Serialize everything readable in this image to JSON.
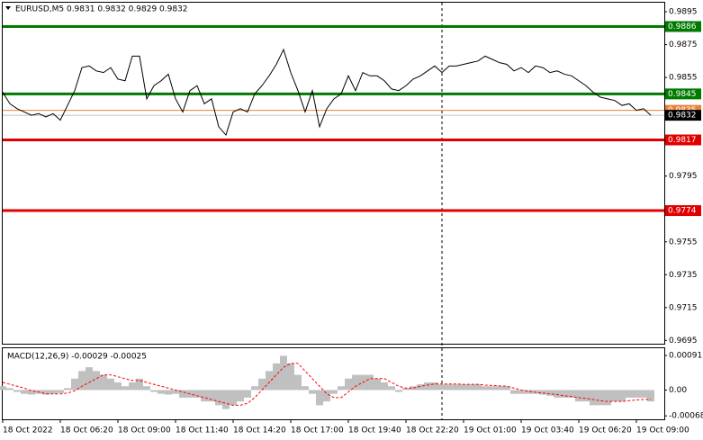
{
  "chart_data": [
    {
      "type": "line",
      "title": "EURUSD,M5  0.9831 0.9832 0.9829 0.9832",
      "series": [
        {
          "color": "#000000",
          "values": [
            0.9846,
            0.9839,
            0.9836,
            0.9834,
            0.9832,
            0.9833,
            0.9831,
            0.9833,
            0.9829,
            0.9838,
            0.9847,
            0.9861,
            0.9862,
            0.9859,
            0.9858,
            0.9861,
            0.9854,
            0.9853,
            0.9868,
            0.9868,
            0.9842,
            0.985,
            0.9853,
            0.9857,
            0.9842,
            0.9834,
            0.9847,
            0.985,
            0.9839,
            0.9842,
            0.9825,
            0.982,
            0.9834,
            0.9836,
            0.9834,
            0.9845,
            0.985,
            0.9856,
            0.9863,
            0.9872,
            0.9858,
            0.9847,
            0.9834,
            0.9847,
            0.9825,
            0.9836,
            0.9842,
            0.9845,
            0.9856,
            0.9847,
            0.9858,
            0.9856,
            0.9856,
            0.9853,
            0.9848,
            0.9847,
            0.985,
            0.9854,
            0.9856,
            0.9859,
            0.9862,
            0.9858,
            0.9862,
            0.9862,
            0.9863,
            0.9864,
            0.9865,
            0.9868,
            0.9866,
            0.9864,
            0.9863,
            0.9859,
            0.9861,
            0.9858,
            0.9862,
            0.9861,
            0.9858,
            0.9859,
            0.9857,
            0.9856,
            0.9853,
            0.985,
            0.9846,
            0.9843,
            0.9842,
            0.9841,
            0.9838,
            0.9839,
            0.9835,
            0.9836,
            0.9832
          ]
        }
      ],
      "ylim": [
        0.9693,
        0.99005
      ],
      "yticks": [
        0.9895,
        0.9875,
        0.9855,
        0.9795,
        0.9755,
        0.9735,
        0.9715,
        0.9695
      ],
      "levels": [
        {
          "value": 0.9835,
          "color": "#e8833a",
          "thin": true
        },
        {
          "value": 0.9886,
          "color": "#007a00"
        },
        {
          "value": 0.9845,
          "color": "#007a00"
        },
        {
          "value": 0.9817,
          "color": "#e00000"
        },
        {
          "value": 0.9774,
          "color": "#e00000"
        },
        {
          "value": 0.9832,
          "color": "#000000",
          "thin": true
        }
      ],
      "xticks": [
        {
          "value": 0,
          "label": "18 Oct 2022"
        },
        {
          "value": 8,
          "label": "18 Oct 06:20"
        },
        {
          "value": 16,
          "label": "18 Oct 09:00"
        },
        {
          "value": 24,
          "label": "18 Oct 11:40"
        },
        {
          "value": 32,
          "label": "18 Oct 14:20"
        },
        {
          "value": 40,
          "label": "18 Oct 17:00"
        },
        {
          "value": 48,
          "label": "18 Oct 19:40"
        },
        {
          "value": 56,
          "label": "18 Oct 22:20"
        },
        {
          "value": 64,
          "label": "19 Oct 01:00"
        },
        {
          "value": 72,
          "label": "19 Oct 03:40"
        },
        {
          "value": 80,
          "label": "19 Oct 06:20"
        },
        {
          "value": 88,
          "label": "19 Oct 09:00"
        }
      ]
    },
    {
      "type": "macd",
      "title": "MACD(12,26,9) -0.00029 -0.00025",
      "series": [
        {
          "style": "histogram",
          "color": "#c0c0c0",
          "values": [
            0.0001,
            5e-05,
            -5e-05,
            -0.0001,
            -0.00012,
            -0.0001,
            -0.00012,
            -0.0001,
            -8e-05,
            5e-05,
            0.0003,
            0.0005,
            0.0006,
            0.0005,
            0.0004,
            0.0003,
            0.0002,
            0.0001,
            0.0002,
            0.0003,
            0.0001,
            -5e-05,
            -0.0001,
            -0.00012,
            -0.0001,
            -0.0002,
            -0.0002,
            -0.0002,
            -0.0003,
            -0.0003,
            -0.0004,
            -0.0005,
            -0.0004,
            -0.0003,
            -0.0002,
            0.0001,
            0.0003,
            0.0005,
            0.0007,
            0.0009,
            0.0007,
            0.0004,
            0.0001,
            -0.0001,
            -0.0004,
            -0.0003,
            -0.0001,
            0.0001,
            0.0003,
            0.0004,
            0.0004,
            0.0004,
            0.0003,
            0.0002,
            0.0001,
            -5e-05,
            5e-05,
            0.0001,
            0.00015,
            0.0002,
            0.0002,
            0.00015,
            0.00015,
            0.00015,
            0.00015,
            0.00015,
            0.00015,
            0.0001,
            0.0001,
            0.0001,
            0.0001,
            -0.0001,
            -0.0001,
            -0.0001,
            -0.0001,
            -0.00012,
            -0.00015,
            -0.0002,
            -0.0002,
            -0.0002,
            -0.0003,
            -0.0003,
            -0.0004,
            -0.0004,
            -0.0004,
            -0.0003,
            -0.0003,
            -0.0002,
            -0.0002,
            -0.0002,
            -0.0003
          ]
        },
        {
          "style": "signal",
          "color": "#ff0000",
          "values": [
            0.0002,
            0.00015,
            0.0001,
            5e-05,
            -2e-05,
            -5e-05,
            -0.0001,
            -0.0001,
            -0.0001,
            -8e-05,
            -2e-05,
            0.0001,
            0.0002,
            0.0003,
            0.0004,
            0.0004,
            0.00035,
            0.0003,
            0.00025,
            0.00025,
            0.0002,
            0.00015,
            0.0001,
            5e-05,
            0,
            -5e-05,
            -0.0001,
            -0.00015,
            -0.0002,
            -0.00025,
            -0.0003,
            -0.00035,
            -0.0004,
            -0.0004,
            -0.00035,
            -0.0002,
            0,
            0.0002,
            0.0004,
            0.0006,
            0.0007,
            0.0007,
            0.0005,
            0.0003,
            0.0001,
            -0.0001,
            -0.0002,
            -0.0002,
            -5e-05,
            0.0001,
            0.0002,
            0.0003,
            0.0003,
            0.0003,
            0.0002,
            0.0001,
            5e-05,
            5e-05,
            0.0001,
            0.00013,
            0.00016,
            0.00016,
            0.00016,
            0.00016,
            0.00015,
            0.00015,
            0.00015,
            0.00013,
            0.00012,
            0.00011,
            0.0001,
            5e-05,
            0,
            -3e-05,
            -6e-05,
            -8e-05,
            -0.0001,
            -0.00012,
            -0.00015,
            -0.00017,
            -0.0002,
            -0.00022,
            -0.00025,
            -0.00028,
            -0.0003,
            -0.0003,
            -0.0003,
            -0.00028,
            -0.00026,
            -0.00025,
            -0.00024
          ]
        }
      ],
      "ylim": [
        -0.00077,
        0.0011
      ],
      "yticks": [
        0.00091,
        {
          "value": 0,
          "label": "0.00"
        },
        -0.00068
      ]
    }
  ]
}
